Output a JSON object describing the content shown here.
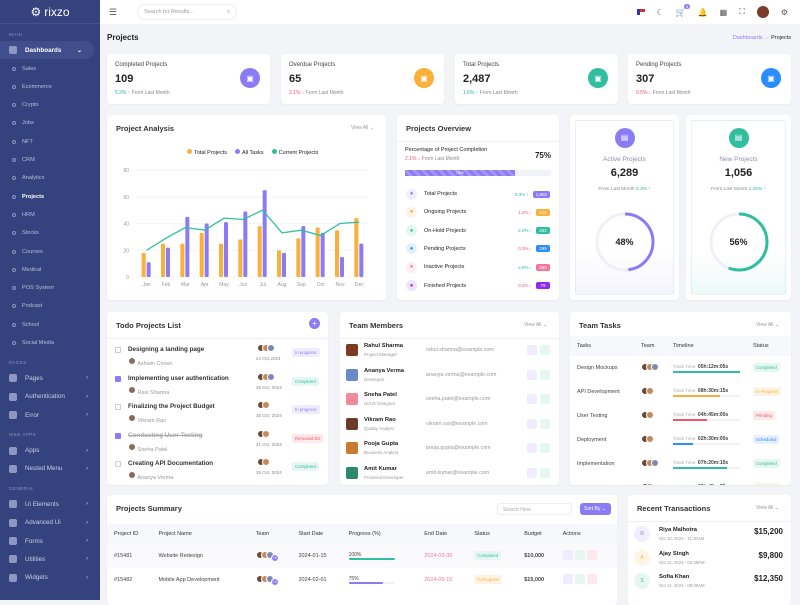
{
  "brand": "rixzo",
  "sidebar": {
    "main_label": "MAIN",
    "dashboards": "Dashboards",
    "subitems": [
      "Sales",
      "Ecommerce",
      "Crypto",
      "Jobs",
      "NFT",
      "CRM",
      "Analytics",
      "Projects",
      "HRM",
      "Stocks",
      "Courses",
      "Medical",
      "POS System",
      "Podcast",
      "School",
      "Social Media"
    ],
    "current": "Projects",
    "pages_label": "PAGES",
    "pages": [
      "Pages",
      "Authentication",
      "Error"
    ],
    "webapps_label": "WEB APPS",
    "webapps": [
      "Apps",
      "Nested Menu"
    ],
    "general_label": "GENERAL",
    "general": [
      "Ui Elements",
      "Advanced Ui",
      "Forms",
      "Utilities",
      "Widgets"
    ]
  },
  "header": {
    "search_placeholder": "Search for Results...",
    "cart_count": "5"
  },
  "page": {
    "title": "Projects",
    "breadcrumb": [
      "Dashboards",
      "Projects"
    ]
  },
  "kpis": [
    {
      "label": "Completed Projects",
      "value": "109",
      "change": "5.3%",
      "dir": "up",
      "note": "From Last Month",
      "color": "#8b7cf6",
      "icon": "file-icon"
    },
    {
      "label": "Overdue Projects",
      "value": "65",
      "change": "2.1%",
      "dir": "down",
      "note": "From Last Month",
      "color": "#fbb03b",
      "icon": "briefcase-icon"
    },
    {
      "label": "Total Projects",
      "value": "2,487",
      "change": "1.6%",
      "dir": "up",
      "note": "From Last Month",
      "color": "#2fbfa0",
      "icon": "book-icon"
    },
    {
      "label": "Pending Projects",
      "value": "307",
      "change": "0.5%",
      "dir": "down",
      "note": "From Last Month",
      "color": "#2a8cff",
      "icon": "clock-icon"
    }
  ],
  "analysis": {
    "title": "Project Analysis",
    "view_all": "View All"
  },
  "chart_data": {
    "type": "bar",
    "categories": [
      "Jan",
      "Feb",
      "Mar",
      "Apr",
      "May",
      "Jun",
      "Jul",
      "Aug",
      "Sep",
      "Oct",
      "Nov",
      "Dec"
    ],
    "series": [
      {
        "name": "Total Projects",
        "type": "bar",
        "color": "#fbb03b",
        "values": [
          18,
          25,
          25,
          33,
          25,
          28,
          38,
          20,
          29,
          37,
          35,
          44
        ]
      },
      {
        "name": "All Tasks",
        "type": "bar",
        "color": "#8b7cf6",
        "values": [
          11,
          22,
          45,
          40,
          41,
          49,
          65,
          18,
          38,
          33,
          15,
          25
        ]
      },
      {
        "name": "Current Projects",
        "type": "line",
        "color": "#2fbfa0",
        "values": [
          20,
          29,
          37,
          35,
          44,
          43,
          50,
          33,
          35,
          31,
          40,
          41
        ]
      }
    ],
    "yticks": [
      0,
      20,
      40,
      60,
      80
    ],
    "ylim": [
      0,
      80
    ],
    "grid": true,
    "legend": "top"
  },
  "overview": {
    "title": "Projects Overview",
    "completion_label": "Percentage of Project Completion",
    "completion_change": "2.1%",
    "completion_note": "From Last Month",
    "completion": "75%",
    "completion_value": 75,
    "items": [
      {
        "label": "Total Projects",
        "change": "5.3%",
        "dir": "up",
        "count": "1,902",
        "color": "#8b7cf6",
        "icon": "calendar-icon"
      },
      {
        "label": "Ongoing Projects",
        "change": "1.2%",
        "dir": "down",
        "count": "214",
        "color": "#fbb03b",
        "icon": "sun-icon"
      },
      {
        "label": "On-Hold Projects",
        "change": "2.0%",
        "dir": "up",
        "count": "262",
        "color": "#2fbfa0",
        "icon": "pause-icon"
      },
      {
        "label": "Pending Projects",
        "change": "0.3%",
        "dir": "down",
        "count": "295",
        "color": "#2a8cff",
        "icon": "clock-icon"
      },
      {
        "label": "Inactive Projects",
        "change": "2.6%",
        "dir": "up",
        "count": "289",
        "color": "#f5769a",
        "icon": "close-icon"
      },
      {
        "label": "Finished Projects",
        "change": "0.2%",
        "dir": "down",
        "count": "79",
        "color": "#8f2bf0",
        "icon": "check-icon"
      }
    ]
  },
  "active": {
    "label": "Active Projects",
    "value": "6,289",
    "note": "From Last Month",
    "change": "5.3%",
    "percent": "48%",
    "percent_value": 48,
    "color": "#8b7cf6"
  },
  "newp": {
    "label": "New Projects",
    "value": "1,056",
    "note": "From Last Month",
    "change": "1.25%",
    "percent": "56%",
    "percent_value": 56,
    "color": "#2fbfa0"
  },
  "todo": {
    "title": "Todo Projects List",
    "items": [
      {
        "title": "Designing a landing page",
        "person": "Ashwin Crown",
        "date": "24 Oct,2024",
        "status": "In progress",
        "checked": false
      },
      {
        "title": "Implementing user authentication",
        "person": "Ravi Sharma",
        "date": "26 Oct, 2024",
        "status": "Completed",
        "checked": true
      },
      {
        "title": "Finalizing the Project Budget",
        "person": "Vikram Rao",
        "date": "30 Oct, 2024",
        "status": "In progress",
        "checked": false
      },
      {
        "title": "Conducting User Testing",
        "person": "Sneha Patel",
        "date": "31 Oct, 2024",
        "status": "Removed list",
        "checked": true
      },
      {
        "title": "Creating API Documentation",
        "person": "Ananya Verma",
        "date": "26 Oct, 2024",
        "status": "Completed",
        "checked": false
      }
    ]
  },
  "members": {
    "title": "Team Members",
    "view_all": "View All",
    "items": [
      {
        "name": "Rahul Sharma",
        "role": "Project Manager",
        "email": "rahul.sharma@example.com"
      },
      {
        "name": "Ananya Verma",
        "role": "Developer",
        "email": "ananya.verma@example.com"
      },
      {
        "name": "Sneha Patel",
        "role": "UI/UX Designer",
        "email": "sneha.patel@example.com"
      },
      {
        "name": "Vikram Rao",
        "role": "Quality Analyst",
        "email": "vikram.rao@example.com"
      },
      {
        "name": "Pooja Gupta",
        "role": "Business Analyst",
        "email": "pooja.gupta@example.com"
      },
      {
        "name": "Amit Kumar",
        "role": "Frontend Developer",
        "email": "amit.kumar@example.com"
      }
    ]
  },
  "tasks": {
    "title": "Team Tasks",
    "view_all": "View All",
    "headers": [
      "Tasks",
      "Team",
      "Timeline",
      "Status"
    ],
    "track_label": "Track Time:",
    "items": [
      {
        "task": "Design Mockups",
        "time": "05h:12m:05s",
        "progress": 100,
        "status": "Completed",
        "team": 3
      },
      {
        "task": "API Development",
        "time": "08h:30m:15s",
        "progress": 70,
        "status": "In Progress",
        "team": 2
      },
      {
        "task": "User Testing",
        "time": "04h:45m:00s",
        "progress": 50,
        "status": "Pending",
        "team": 2
      },
      {
        "task": "Deployment",
        "time": "02h:30m:00s",
        "progress": 30,
        "status": "Scheduled",
        "team": 2
      },
      {
        "task": "Implementation",
        "time": "07h:20m:10s",
        "progress": 80,
        "status": "Completed",
        "team": 3
      },
      {
        "task": "Code Review",
        "time": "03h:45m:25s",
        "progress": 60,
        "status": "In Progress",
        "team": 2
      }
    ]
  },
  "summary": {
    "title": "Projects Summary",
    "search_placeholder": "Search Here",
    "sort": "Sort By",
    "headers": [
      "Project ID",
      "Project Name",
      "Team",
      "Start Date",
      "Progress (%)",
      "End Date",
      "Status",
      "Budget",
      "Actions"
    ],
    "rows": [
      {
        "id": "#15481",
        "name": "Website Redesign",
        "more": "+5",
        "start": "2024-01-15",
        "progress": "100%",
        "progress_value": 100,
        "end": "2024-03-30",
        "status": "Completed",
        "budget": "$10,000"
      },
      {
        "id": "#15482",
        "name": "Mobile App Development",
        "more": "+3",
        "start": "2024-02-01",
        "progress": "75%",
        "progress_value": 75,
        "end": "2024-05-15",
        "status": "In Progress",
        "budget": "$15,000"
      }
    ]
  },
  "transactions": {
    "title": "Recent Transactions",
    "view_all": "View All",
    "items": [
      {
        "initial": "R",
        "name": "Riya Malhotra",
        "time": "Oct 10, 2024 - 11:30AM",
        "amount": "$15,200",
        "color": "#8b7cf6"
      },
      {
        "initial": "A",
        "name": "Ajay Singh",
        "time": "Oct 12, 2024 - 02:45PM",
        "amount": "$9,800",
        "color": "#fbb03b"
      },
      {
        "initial": "S",
        "name": "Sofia Khan",
        "time": "Oct 14, 2024 - 09:30AM",
        "amount": "$12,350",
        "color": "#2fbfa0"
      }
    ]
  },
  "status_colors": {
    "Completed": [
      "#e6f7f2",
      "#2fbfa0"
    ],
    "In progress": [
      "#efedfd",
      "#8b7cf6"
    ],
    "In Progress": [
      "#fff4e3",
      "#fbb03b"
    ],
    "Pending": [
      "#fde8eb",
      "#f1556c"
    ],
    "Scheduled": [
      "#e6f0ff",
      "#2a8cff"
    ],
    "Removed list": [
      "#fde8eb",
      "#f1556c"
    ]
  }
}
